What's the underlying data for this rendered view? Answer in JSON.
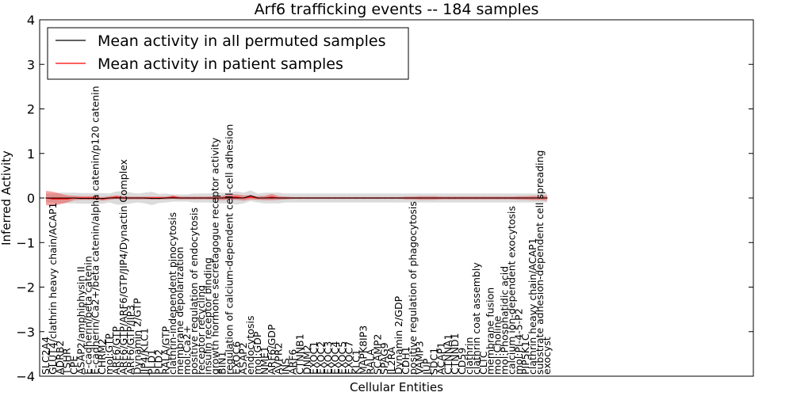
{
  "chart_data": {
    "type": "line",
    "title": "Arf6 trafficking events -- 184 samples",
    "xlabel": "Cellular Entities",
    "ylabel": "Inferred Activity",
    "ylim": [
      -4,
      4
    ],
    "yticks": [
      -4,
      -3,
      -2,
      -1,
      0,
      1,
      2,
      3,
      4
    ],
    "ytick_labels": [
      "−4",
      "−3",
      "−2",
      "−1",
      "0",
      "1",
      "2",
      "3",
      "4"
    ],
    "legend_position": "top-left",
    "categories": [
      "SLC2A4",
      "GLUT4/clathrin heavy chain/ACAP1",
      "ADRB2",
      "TSHR",
      "CPE",
      "ASAP2/amphiphysin II",
      "E-cadherin/beta catenin",
      "E-cadherin/Ca2+/beta catenin/alpha catenin/p120 catenin",
      "CHRM2",
      "mol:GTP",
      "ARF6/GTP",
      "ARF6/GTP/ARF6/GTP/JIP4/Dynactin Complex",
      "ARF6/GTP/JIP3",
      "Dynamin 2/GTP",
      "JIP4/KLC1",
      "PLD1",
      "PLD2",
      "RALA/GTP",
      "clathrin-independent pinocytosis",
      "membrane depolarization",
      "mol:Ca2+",
      "positive regulation of endocytosis",
      "receptor recycling",
      "insulin receptor binding",
      "growth hormone secretagogue receptor activity",
      "BIN1",
      "regulation of calcium-dependent cell-cell adhesion",
      "EXOC6",
      "ASAP2",
      "endocytosis",
      "mol:GDP",
      "NME1",
      "ARF6/GDP",
      "AVPR2",
      "INS",
      "ARF6",
      "CTNNB1",
      "DNM2",
      "EXOC1",
      "EXOC2",
      "EXOC3",
      "EXOC4",
      "EXOC5",
      "EXOC7",
      "KLC1",
      "MAPK8IP3",
      "RALA",
      "SCAMP2",
      "SPAG9",
      "IL2RA",
      "Dynamin 2/GDP",
      "CDH1",
      "positive regulation of phagocytosis",
      "VAMP3",
      "JUP",
      "SDC1",
      "ACAP1",
      "CTNNA1",
      "CTNND1",
      "CD59",
      "clathrin",
      "clathrin coat assembly",
      "CLTC",
      "membrane fusion",
      "mol:Choline",
      "mol:Phosphatidic acid",
      "calcium ion-dependent exocytosis",
      "mol:PI-4-5-P2",
      "PIP5K1C",
      "clathrin heavy chain/ACAP1",
      "substrate adhesion-dependent cell spreading",
      "exocyst"
    ],
    "series": [
      {
        "name": "Mean activity in all permuted samples",
        "color": "#000000",
        "values": [
          0.0,
          0.0,
          0.0,
          0.0,
          0.0,
          -0.01,
          -0.01,
          -0.01,
          -0.01,
          0.0,
          0.0,
          0.0,
          0.0,
          0.0,
          0.0,
          -0.01,
          -0.01,
          0.0,
          0.0,
          0.0,
          0.0,
          0.0,
          0.0,
          0.0,
          0.0,
          0.0,
          0.0,
          0.0,
          0.0,
          0.05,
          0.0,
          0.0,
          0.0,
          0.0,
          0.0,
          0.0,
          0.0,
          0.0,
          0.0,
          0.0,
          0.0,
          0.0,
          0.0,
          0.0,
          0.0,
          0.0,
          0.0,
          0.0,
          0.0,
          0.0,
          0.0,
          0.0,
          0.0,
          0.0,
          0.0,
          0.0,
          0.0,
          0.0,
          0.0,
          0.0,
          0.0,
          0.0,
          0.0,
          0.0,
          0.0,
          0.0,
          0.0,
          0.0,
          0.0,
          0.0,
          0.0,
          0.0
        ],
        "band": [
          0.1,
          0.1,
          0.12,
          0.12,
          0.12,
          0.12,
          0.12,
          0.12,
          0.12,
          0.1,
          0.15,
          0.15,
          0.12,
          0.1,
          0.12,
          0.15,
          0.1,
          0.1,
          0.08,
          0.08,
          0.08,
          0.1,
          0.1,
          0.1,
          0.12,
          0.12,
          0.12,
          0.15,
          0.12,
          0.12,
          0.1,
          0.12,
          0.12,
          0.12,
          0.1,
          0.1,
          0.1,
          0.1,
          0.1,
          0.1,
          0.1,
          0.1,
          0.1,
          0.1,
          0.1,
          0.1,
          0.1,
          0.1,
          0.1,
          0.1,
          0.1,
          0.1,
          0.1,
          0.1,
          0.1,
          0.1,
          0.1,
          0.1,
          0.1,
          0.1,
          0.1,
          0.1,
          0.1,
          0.1,
          0.1,
          0.1,
          0.1,
          0.1,
          0.1,
          0.1,
          0.1,
          0.1
        ]
      },
      {
        "name": "Mean activity in patient samples",
        "color": "#ff0000",
        "values": [
          0.0,
          -0.02,
          -0.02,
          -0.02,
          0.0,
          0.0,
          0.0,
          0.0,
          -0.02,
          0.0,
          0.02,
          0.0,
          0.0,
          0.0,
          0.0,
          0.0,
          0.0,
          0.0,
          0.02,
          0.0,
          0.0,
          0.0,
          0.0,
          0.0,
          0.0,
          0.0,
          0.02,
          0.02,
          0.0,
          0.02,
          0.0,
          0.0,
          0.02,
          0.0,
          0.0,
          0.0,
          0.0,
          0.0,
          0.0,
          0.0,
          0.0,
          0.0,
          0.0,
          0.0,
          0.0,
          0.0,
          0.0,
          0.0,
          0.0,
          0.0,
          0.0,
          0.0,
          0.0,
          0.0,
          0.0,
          0.0,
          0.0,
          0.0,
          0.0,
          0.0,
          0.0,
          0.0,
          0.0,
          0.0,
          0.0,
          0.0,
          0.0,
          0.0,
          0.0,
          0.0,
          0.0,
          0.0
        ],
        "band": [
          0.16,
          0.16,
          0.12,
          0.08,
          0.05,
          0.04,
          0.04,
          0.04,
          0.04,
          0.04,
          0.04,
          0.04,
          0.03,
          0.03,
          0.03,
          0.03,
          0.03,
          0.03,
          0.04,
          0.03,
          0.03,
          0.03,
          0.03,
          0.03,
          0.04,
          0.05,
          0.06,
          0.06,
          0.06,
          0.05,
          0.04,
          0.05,
          0.07,
          0.04,
          0.03,
          0.02,
          0.02,
          0.02,
          0.02,
          0.02,
          0.02,
          0.02,
          0.02,
          0.02,
          0.02,
          0.02,
          0.02,
          0.02,
          0.02,
          0.02,
          0.02,
          0.03,
          0.03,
          0.04,
          0.04,
          0.04,
          0.03,
          0.03,
          0.03,
          0.03,
          0.03,
          0.03,
          0.03,
          0.03,
          0.03,
          0.03,
          0.03,
          0.04,
          0.04,
          0.05,
          0.05,
          0.06
        ]
      }
    ]
  }
}
